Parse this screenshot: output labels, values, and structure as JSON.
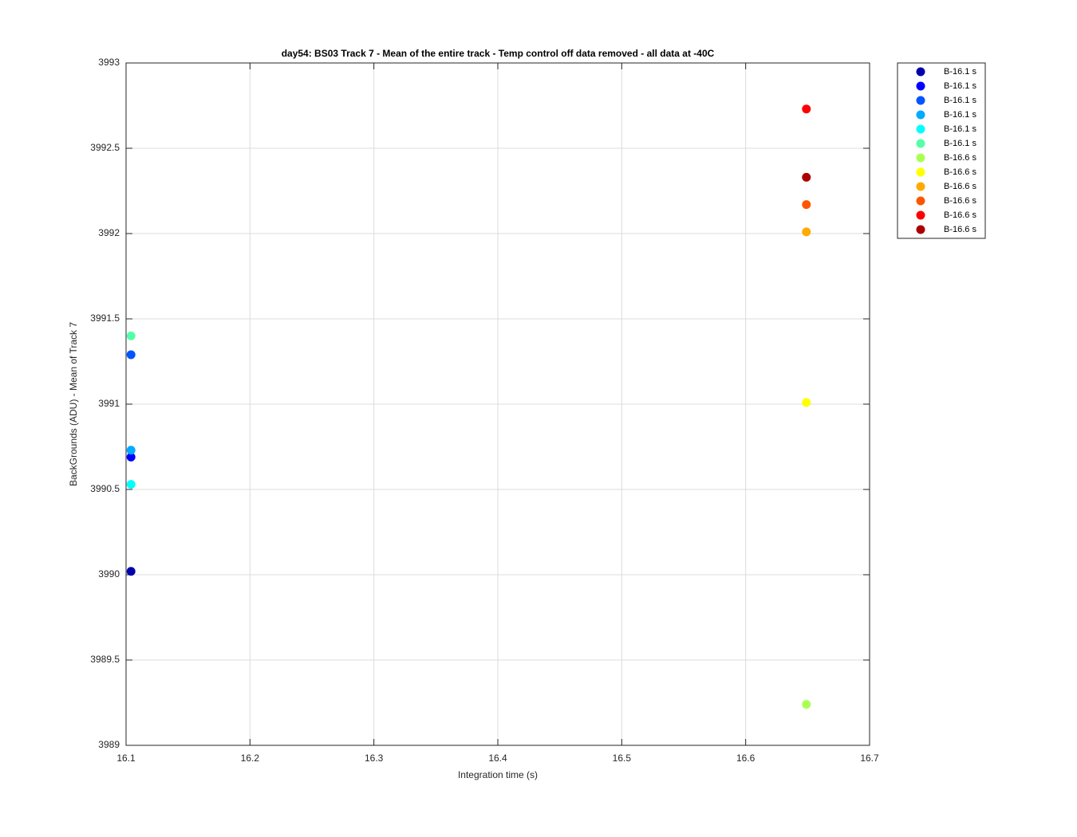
{
  "chart_data": {
    "type": "scatter",
    "title": "day54: BS03  Track 7 - Mean of the entire track - Temp control off data removed - all data at -40C",
    "xlabel": "Integration time (s)",
    "ylabel": "BackGrounds (ADU) - Mean of Track 7",
    "xlim": [
      16.1,
      16.7
    ],
    "xticks": [
      16.1,
      16.2,
      16.3,
      16.4,
      16.5,
      16.6,
      16.7
    ],
    "ylim": [
      3989,
      3993
    ],
    "yticks": [
      3989,
      3989.5,
      3990,
      3990.5,
      3991,
      3991.5,
      3992,
      3992.5,
      3993
    ],
    "grid": true,
    "legend": "outside-right",
    "series": [
      {
        "name": "B-16.1 s",
        "color": "#0000aa",
        "x": [
          16.104
        ],
        "values": [
          3990.02
        ]
      },
      {
        "name": "B-16.1 s",
        "color": "#0000ff",
        "x": [
          16.104
        ],
        "values": [
          3990.69
        ]
      },
      {
        "name": "B-16.1 s",
        "color": "#0055ff",
        "x": [
          16.104
        ],
        "values": [
          3991.29
        ]
      },
      {
        "name": "B-16.1 s",
        "color": "#00aaff",
        "x": [
          16.104
        ],
        "values": [
          3990.73
        ]
      },
      {
        "name": "B-16.1 s",
        "color": "#00ffff",
        "x": [
          16.104
        ],
        "values": [
          3990.53
        ]
      },
      {
        "name": "B-16.1 s",
        "color": "#55ffaa",
        "x": [
          16.104
        ],
        "values": [
          3991.4
        ]
      },
      {
        "name": "B-16.6 s",
        "color": "#aaff55",
        "x": [
          16.649
        ],
        "values": [
          3989.24
        ]
      },
      {
        "name": "B-16.6 s",
        "color": "#ffff00",
        "x": [
          16.649
        ],
        "values": [
          3991.01
        ]
      },
      {
        "name": "B-16.6 s",
        "color": "#ffaa00",
        "x": [
          16.649
        ],
        "values": [
          3992.01
        ]
      },
      {
        "name": "B-16.6 s",
        "color": "#ff5500",
        "x": [
          16.649
        ],
        "values": [
          3992.17
        ]
      },
      {
        "name": "B-16.6 s",
        "color": "#ff0000",
        "x": [
          16.649
        ],
        "values": [
          3992.73
        ]
      },
      {
        "name": "B-16.6 s",
        "color": "#aa0000",
        "x": [
          16.649
        ],
        "values": [
          3992.33
        ]
      }
    ]
  }
}
